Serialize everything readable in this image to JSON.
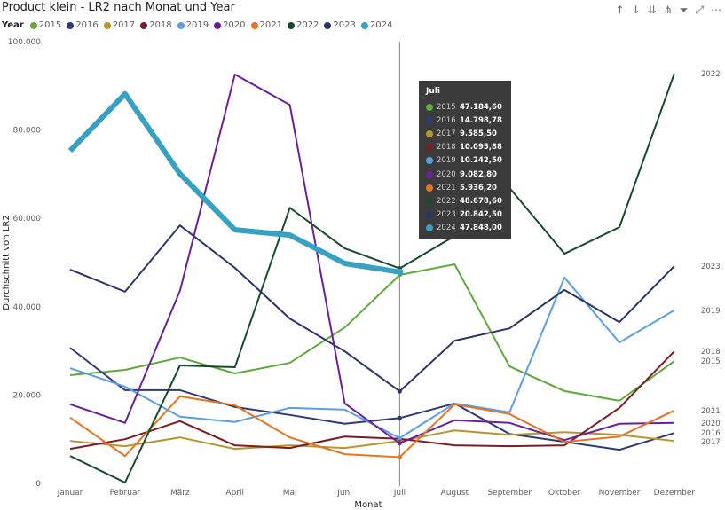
{
  "title": "Product klein - LR2 nach Monat und Year",
  "legend_label": "Year",
  "toolbar": [
    "arrow-up-icon",
    "arrow-down-icon",
    "double-arrow-down-icon",
    "expand-hierarchy-icon",
    "filter-icon",
    "focus-mode-icon",
    "more-options-icon"
  ],
  "tooltip": {
    "month": "Juli",
    "rows": [
      {
        "year": "2015",
        "value": "47.184,60"
      },
      {
        "year": "2016",
        "value": "14.798,78"
      },
      {
        "year": "2017",
        "value": "9.585,50"
      },
      {
        "year": "2018",
        "value": "10.095,88"
      },
      {
        "year": "2019",
        "value": "10.242,50"
      },
      {
        "year": "2020",
        "value": "9.082,80"
      },
      {
        "year": "2021",
        "value": "5.936,20"
      },
      {
        "year": "2022",
        "value": "48.678,60"
      },
      {
        "year": "2023",
        "value": "20.842,50"
      },
      {
        "year": "2024",
        "value": "47.848,00"
      }
    ]
  },
  "chart_data": {
    "type": "line",
    "xlabel": "Monat",
    "ylabel": "Durchschnitt von LR2",
    "ylim": [
      0,
      100000
    ],
    "yticks": [
      "0",
      "20.000",
      "40.000",
      "60.000",
      "80.000",
      "100.000"
    ],
    "ytick_values": [
      0,
      20000,
      40000,
      60000,
      80000,
      100000
    ],
    "categories": [
      "Januar",
      "Februar",
      "März",
      "April",
      "Mai",
      "Juni",
      "Juli",
      "August",
      "September",
      "Oktober",
      "November",
      "Dezember"
    ],
    "highlight_category": "Juli",
    "legend_position": "top-left",
    "series": [
      {
        "name": "2015",
        "color": "#5fa83b",
        "values": [
          24500,
          25700,
          28500,
          24900,
          27300,
          35300,
          47184.6,
          49600,
          26500,
          20900,
          18700,
          27700
        ]
      },
      {
        "name": "2016",
        "color": "#2c3a78",
        "values": [
          30700,
          21100,
          21100,
          17300,
          15500,
          13500,
          14798.78,
          18100,
          11200,
          9400,
          7600,
          11400
        ]
      },
      {
        "name": "2017",
        "color": "#b5962a",
        "values": [
          9600,
          8400,
          10400,
          7800,
          8600,
          8000,
          9585.5,
          12000,
          11000,
          11600,
          11000,
          9600
        ]
      },
      {
        "name": "2018",
        "color": "#7c1c24",
        "values": [
          7800,
          10000,
          14100,
          8600,
          8000,
          10600,
          10095.88,
          8600,
          8400,
          8600,
          17100,
          29900
        ]
      },
      {
        "name": "2019",
        "color": "#5b9fe0",
        "values": [
          26100,
          21900,
          15100,
          13900,
          17100,
          16700,
          10242.5,
          18100,
          16100,
          46600,
          31900,
          39200
        ]
      },
      {
        "name": "2020",
        "color": "#6b1f99",
        "values": [
          17900,
          13700,
          43600,
          92600,
          85700,
          18100,
          9082.8,
          14300,
          13700,
          9800,
          13500,
          13700
        ]
      },
      {
        "name": "2021",
        "color": "#e8731f",
        "values": [
          14900,
          6200,
          19700,
          17700,
          10400,
          6600,
          5936.2,
          17900,
          15700,
          9400,
          10600,
          16500
        ]
      },
      {
        "name": "2022",
        "color": "#174a2e",
        "values": [
          6200,
          200,
          26700,
          26300,
          62400,
          53200,
          48678.6,
          56000,
          66900,
          52000,
          58000,
          92800
        ]
      },
      {
        "name": "2023",
        "color": "#2b3467",
        "values": [
          48400,
          43400,
          58400,
          48800,
          37300,
          29900,
          20842.5,
          32300,
          35100,
          43800,
          36500,
          49200
        ]
      },
      {
        "name": "2024",
        "color": "#36a1c1",
        "values": [
          75300,
          88200,
          70100,
          57400,
          56200,
          49800,
          47848,
          null,
          null,
          null,
          null,
          null
        ]
      }
    ]
  }
}
